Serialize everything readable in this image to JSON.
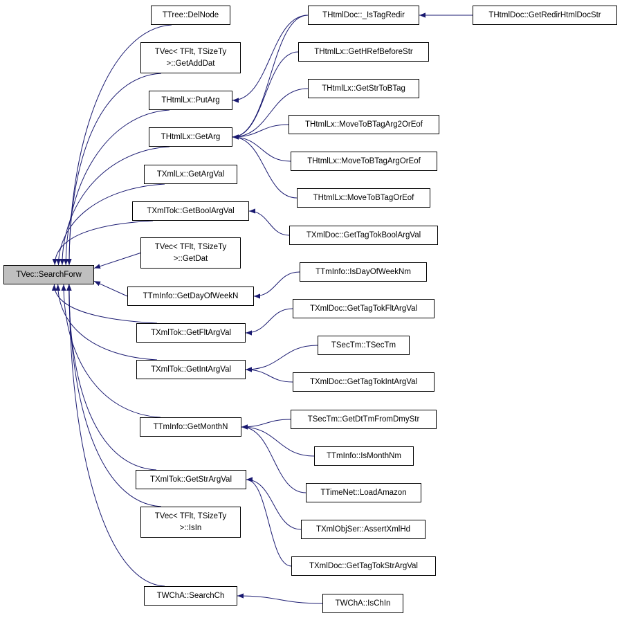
{
  "graph": {
    "edge_color": "#191970",
    "root_fill": "#bfbfbf",
    "nodes": [
      {
        "id": "root",
        "label": "TVec::SearchForw"
      },
      {
        "id": "delnode",
        "label": "TTree::DelNode"
      },
      {
        "id": "getadddat",
        "label": "TVec< TFlt, TSizeTy\n>::GetAddDat"
      },
      {
        "id": "putarg",
        "label": "THtmlLx::PutArg"
      },
      {
        "id": "getarg",
        "label": "THtmlLx::GetArg"
      },
      {
        "id": "xmllxgetargval",
        "label": "TXmlLx::GetArgVal"
      },
      {
        "id": "getboolargval",
        "label": "TXmlTok::GetBoolArgVal"
      },
      {
        "id": "getdat",
        "label": "TVec< TFlt, TSizeTy\n>::GetDat"
      },
      {
        "id": "getdayofweekn",
        "label": "TTmInfo::GetDayOfWeekN"
      },
      {
        "id": "getfltargval",
        "label": "TXmlTok::GetFltArgVal"
      },
      {
        "id": "getintargval",
        "label": "TXmlTok::GetIntArgVal"
      },
      {
        "id": "getmonthn",
        "label": "TTmInfo::GetMonthN"
      },
      {
        "id": "getstrargval",
        "label": "TXmlTok::GetStrArgVal"
      },
      {
        "id": "isin",
        "label": "TVec< TFlt, TSizeTy\n>::IsIn"
      },
      {
        "id": "searchch",
        "label": "TWChA::SearchCh"
      },
      {
        "id": "istagredir",
        "label": "THtmlDoc::_IsTagRedir"
      },
      {
        "id": "getredirhtmldocstr",
        "label": "THtmlDoc::GetRedirHtmlDocStr"
      },
      {
        "id": "gethrefbeforestr",
        "label": "THtmlLx::GetHRefBeforeStr"
      },
      {
        "id": "getstrtobtag",
        "label": "THtmlLx::GetStrToBTag"
      },
      {
        "id": "movetobtagarg2oreof",
        "label": "THtmlLx::MoveToBTagArg2OrEof"
      },
      {
        "id": "movetobtagargoreof",
        "label": "THtmlLx::MoveToBTagArgOrEof"
      },
      {
        "id": "movetobtagoreof",
        "label": "THtmlLx::MoveToBTagOrEof"
      },
      {
        "id": "gettagtokboolargval",
        "label": "TXmlDoc::GetTagTokBoolArgVal"
      },
      {
        "id": "isdayofweeknm",
        "label": "TTmInfo::IsDayOfWeekNm"
      },
      {
        "id": "gettagtokfltargval",
        "label": "TXmlDoc::GetTagTokFltArgVal"
      },
      {
        "id": "tsectm",
        "label": "TSecTm::TSecTm"
      },
      {
        "id": "gettagtokintargval",
        "label": "TXmlDoc::GetTagTokIntArgVal"
      },
      {
        "id": "getdttmfromdmystr",
        "label": "TSecTm::GetDtTmFromDmyStr"
      },
      {
        "id": "ismonthnm",
        "label": "TTmInfo::IsMonthNm"
      },
      {
        "id": "loadamazon",
        "label": "TTimeNet::LoadAmazon"
      },
      {
        "id": "assertxmlhd",
        "label": "TXmlObjSer::AssertXmlHd"
      },
      {
        "id": "gettagtokstrargval",
        "label": "TXmlDoc::GetTagTokStrArgVal"
      },
      {
        "id": "ischin",
        "label": "TWChA::IsChIn"
      }
    ],
    "edges": [
      [
        "delnode",
        "root"
      ],
      [
        "getadddat",
        "root"
      ],
      [
        "putarg",
        "root"
      ],
      [
        "getarg",
        "root"
      ],
      [
        "xmllxgetargval",
        "root"
      ],
      [
        "getboolargval",
        "root"
      ],
      [
        "getdat",
        "root"
      ],
      [
        "getdayofweekn",
        "root"
      ],
      [
        "getfltargval",
        "root"
      ],
      [
        "getintargval",
        "root"
      ],
      [
        "getmonthn",
        "root"
      ],
      [
        "getstrargval",
        "root"
      ],
      [
        "isin",
        "root"
      ],
      [
        "searchch",
        "root"
      ],
      [
        "istagredir",
        "putarg"
      ],
      [
        "istagredir",
        "getarg"
      ],
      [
        "gethrefbeforestr",
        "getarg"
      ],
      [
        "getstrtobtag",
        "getarg"
      ],
      [
        "movetobtagarg2oreof",
        "getarg"
      ],
      [
        "movetobtagargoreof",
        "getarg"
      ],
      [
        "movetobtagoreof",
        "getarg"
      ],
      [
        "getredirhtmldocstr",
        "istagredir"
      ],
      [
        "gettagtokboolargval",
        "getboolargval"
      ],
      [
        "isdayofweeknm",
        "getdayofweekn"
      ],
      [
        "gettagtokfltargval",
        "getfltargval"
      ],
      [
        "tsectm",
        "getintargval"
      ],
      [
        "gettagtokintargval",
        "getintargval"
      ],
      [
        "getdttmfromdmystr",
        "getmonthn"
      ],
      [
        "ismonthnm",
        "getmonthn"
      ],
      [
        "loadamazon",
        "getmonthn"
      ],
      [
        "assertxmlhd",
        "getstrargval"
      ],
      [
        "gettagtokstrargval",
        "getstrargval"
      ],
      [
        "ischin",
        "searchch"
      ]
    ]
  }
}
